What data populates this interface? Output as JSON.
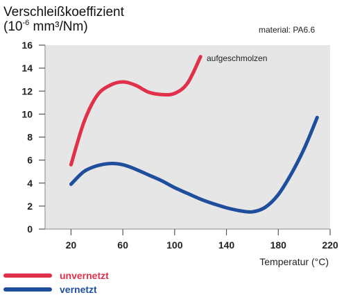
{
  "chart_data": {
    "type": "line",
    "title_line1": "Verschleißkoeffizient",
    "unit_prefix": "(10",
    "unit_exponent": "-6",
    "unit_suffix": " mm³/Nm)",
    "material_note": "material:  PA6.6",
    "xlabel": "Temperatur (°C)",
    "xlim": [
      0,
      220
    ],
    "ylim": [
      0,
      16
    ],
    "xticks": [
      20,
      60,
      100,
      140,
      180,
      220
    ],
    "yticks": [
      0,
      2,
      4,
      6,
      8,
      10,
      12,
      14,
      16
    ],
    "grid": false,
    "legend_position": "bottom-left",
    "annotation": "aufgeschmolzen",
    "series": [
      {
        "name": "unvernetzt",
        "color": "#e0304a",
        "x": [
          20,
          30,
          40,
          50,
          60,
          70,
          80,
          90,
          100,
          110,
          120
        ],
        "y": [
          5.6,
          9.3,
          11.6,
          12.5,
          12.8,
          12.5,
          11.9,
          11.7,
          11.8,
          12.7,
          15
        ]
      },
      {
        "name": "vernetzt",
        "color": "#1f4e9c",
        "x": [
          20,
          30,
          40,
          50,
          60,
          70,
          80,
          90,
          100,
          110,
          120,
          130,
          140,
          150,
          160,
          170,
          180,
          190,
          200,
          210
        ],
        "y": [
          3.9,
          5.0,
          5.5,
          5.7,
          5.6,
          5.2,
          4.7,
          4.2,
          3.6,
          3.1,
          2.6,
          2.2,
          1.85,
          1.6,
          1.5,
          1.9,
          3.0,
          4.8,
          7.0,
          9.7
        ]
      }
    ]
  }
}
